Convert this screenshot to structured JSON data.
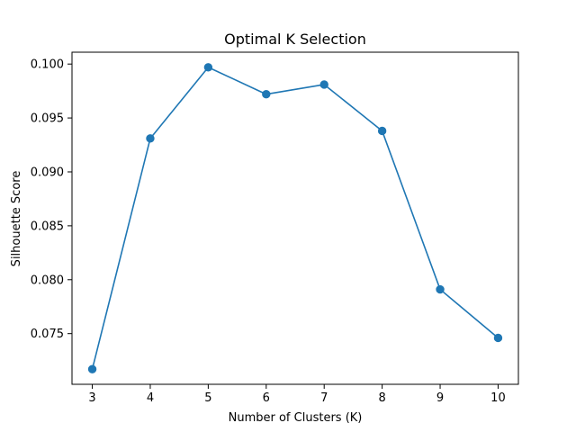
{
  "chart_data": {
    "type": "line",
    "title": "Optimal K Selection",
    "xlabel": "Number of Clusters (K)",
    "ylabel": "Silhouette Score",
    "x": [
      3,
      4,
      5,
      6,
      7,
      8,
      9,
      10
    ],
    "series": [
      {
        "values": [
          0.0717,
          0.0931,
          0.0997,
          0.0972,
          0.0981,
          0.0938,
          0.0791,
          0.0746
        ],
        "color": "#1f77b4",
        "marker": "circle"
      }
    ],
    "x_ticks": [
      "3",
      "4",
      "5",
      "6",
      "7",
      "8",
      "9",
      "10"
    ],
    "y_ticks": [
      0.075,
      0.08,
      0.085,
      0.09,
      0.095,
      0.1
    ],
    "y_tick_labels": [
      "0.075",
      "0.080",
      "0.085",
      "0.090",
      "0.095",
      "0.100"
    ],
    "xlim": [
      2.65,
      10.35
    ],
    "ylim": [
      0.0703,
      0.1011
    ],
    "grid": false,
    "legend": "none"
  }
}
